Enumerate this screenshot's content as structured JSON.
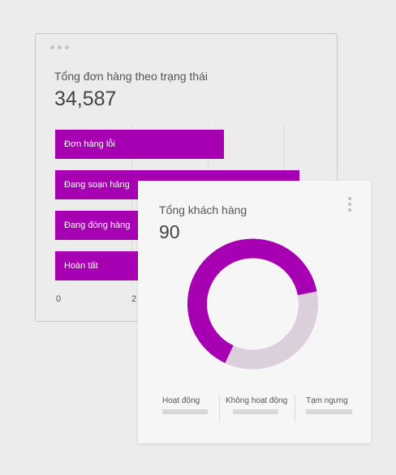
{
  "orders_card": {
    "title": "Tổng đơn hàng theo trạng thái",
    "total": "34,587",
    "axis_ticks": [
      "0",
      "2"
    ]
  },
  "customers_card": {
    "title": "Tổng khách hàng",
    "total": "90",
    "legend": [
      "Hoạt động",
      "Không hoạt động",
      "Tạm ngưng"
    ]
  },
  "colors": {
    "primary": "#a600b2",
    "secondary": "#dccfdc"
  },
  "chart_data": [
    {
      "type": "bar",
      "orientation": "horizontal",
      "categories": [
        "Đơn hàng lỗi",
        "Đang soạn hàng",
        "Đang đóng hàng",
        "Hoàn tất"
      ],
      "xlim": [
        0,
        null
      ]
    },
    {
      "type": "pie",
      "style": "donut",
      "labels": [
        "Hoạt động",
        "Không hoạt động"
      ],
      "values": [
        65,
        35
      ]
    }
  ]
}
